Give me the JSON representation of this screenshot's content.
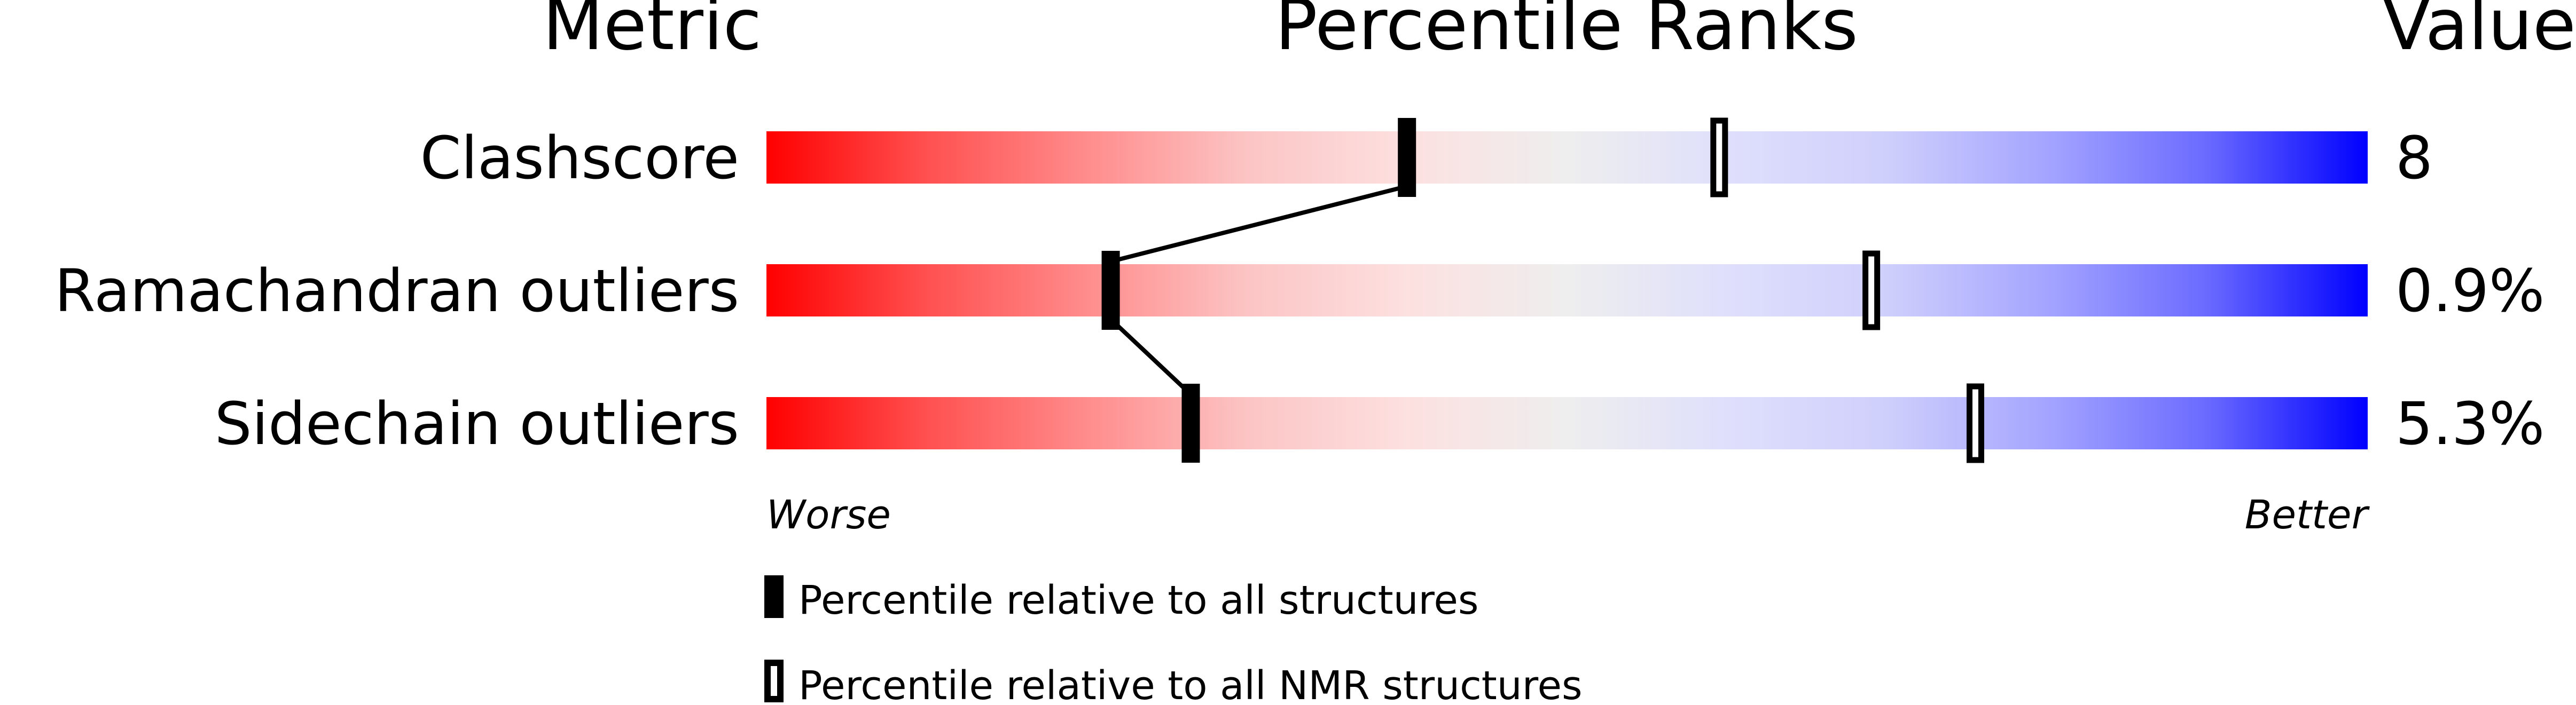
{
  "chart_data": {
    "type": "bar",
    "headers": {
      "metric": "Metric",
      "percentile": "Percentile Ranks",
      "value": "Value"
    },
    "metrics": [
      {
        "label": "Clashscore",
        "value": "8",
        "percentile_all": 40,
        "percentile_nmr": 59.5
      },
      {
        "label": "Ramachandran outliers",
        "value": "0.9%",
        "percentile_all": 21.5,
        "percentile_nmr": 69
      },
      {
        "label": "Sidechain outliers",
        "value": "5.3%",
        "percentile_all": 26.5,
        "percentile_nmr": 75.5
      }
    ],
    "axis": {
      "worse": "Worse",
      "better": "Better",
      "range": [
        0,
        100
      ]
    },
    "legend": {
      "all": "Percentile relative to all structures",
      "nmr": "Percentile relative to all NMR structures"
    },
    "colors": {
      "worse": "#ff0000",
      "mid": "#eeeeee",
      "better": "#0000ff"
    }
  }
}
